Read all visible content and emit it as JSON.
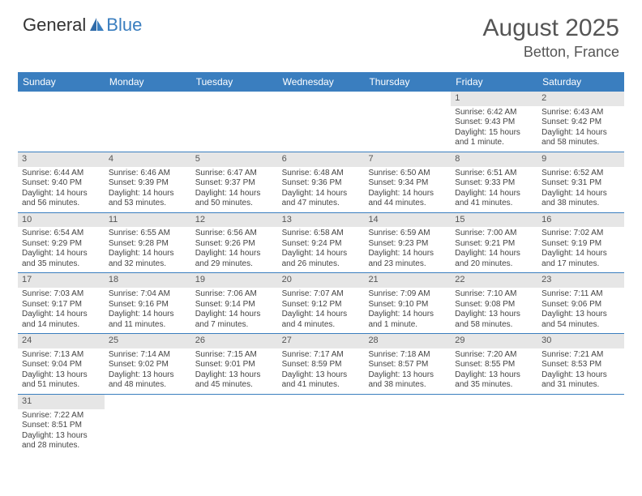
{
  "logo": {
    "part1": "General",
    "part2": "Blue"
  },
  "title": {
    "month": "August 2025",
    "location": "Betton, France"
  },
  "dow": [
    "Sunday",
    "Monday",
    "Tuesday",
    "Wednesday",
    "Thursday",
    "Friday",
    "Saturday"
  ],
  "colors": {
    "header_bg": "#3a7ebf",
    "daynum_bg": "#e6e6e6",
    "text": "#444444"
  },
  "weeks": [
    [
      {
        "n": "",
        "empty": true
      },
      {
        "n": "",
        "empty": true
      },
      {
        "n": "",
        "empty": true
      },
      {
        "n": "",
        "empty": true
      },
      {
        "n": "",
        "empty": true
      },
      {
        "n": "1",
        "sr": "Sunrise: 6:42 AM",
        "ss": "Sunset: 9:43 PM",
        "dl1": "Daylight: 15 hours",
        "dl2": "and 1 minute."
      },
      {
        "n": "2",
        "sr": "Sunrise: 6:43 AM",
        "ss": "Sunset: 9:42 PM",
        "dl1": "Daylight: 14 hours",
        "dl2": "and 58 minutes."
      }
    ],
    [
      {
        "n": "3",
        "sr": "Sunrise: 6:44 AM",
        "ss": "Sunset: 9:40 PM",
        "dl1": "Daylight: 14 hours",
        "dl2": "and 56 minutes."
      },
      {
        "n": "4",
        "sr": "Sunrise: 6:46 AM",
        "ss": "Sunset: 9:39 PM",
        "dl1": "Daylight: 14 hours",
        "dl2": "and 53 minutes."
      },
      {
        "n": "5",
        "sr": "Sunrise: 6:47 AM",
        "ss": "Sunset: 9:37 PM",
        "dl1": "Daylight: 14 hours",
        "dl2": "and 50 minutes."
      },
      {
        "n": "6",
        "sr": "Sunrise: 6:48 AM",
        "ss": "Sunset: 9:36 PM",
        "dl1": "Daylight: 14 hours",
        "dl2": "and 47 minutes."
      },
      {
        "n": "7",
        "sr": "Sunrise: 6:50 AM",
        "ss": "Sunset: 9:34 PM",
        "dl1": "Daylight: 14 hours",
        "dl2": "and 44 minutes."
      },
      {
        "n": "8",
        "sr": "Sunrise: 6:51 AM",
        "ss": "Sunset: 9:33 PM",
        "dl1": "Daylight: 14 hours",
        "dl2": "and 41 minutes."
      },
      {
        "n": "9",
        "sr": "Sunrise: 6:52 AM",
        "ss": "Sunset: 9:31 PM",
        "dl1": "Daylight: 14 hours",
        "dl2": "and 38 minutes."
      }
    ],
    [
      {
        "n": "10",
        "sr": "Sunrise: 6:54 AM",
        "ss": "Sunset: 9:29 PM",
        "dl1": "Daylight: 14 hours",
        "dl2": "and 35 minutes."
      },
      {
        "n": "11",
        "sr": "Sunrise: 6:55 AM",
        "ss": "Sunset: 9:28 PM",
        "dl1": "Daylight: 14 hours",
        "dl2": "and 32 minutes."
      },
      {
        "n": "12",
        "sr": "Sunrise: 6:56 AM",
        "ss": "Sunset: 9:26 PM",
        "dl1": "Daylight: 14 hours",
        "dl2": "and 29 minutes."
      },
      {
        "n": "13",
        "sr": "Sunrise: 6:58 AM",
        "ss": "Sunset: 9:24 PM",
        "dl1": "Daylight: 14 hours",
        "dl2": "and 26 minutes."
      },
      {
        "n": "14",
        "sr": "Sunrise: 6:59 AM",
        "ss": "Sunset: 9:23 PM",
        "dl1": "Daylight: 14 hours",
        "dl2": "and 23 minutes."
      },
      {
        "n": "15",
        "sr": "Sunrise: 7:00 AM",
        "ss": "Sunset: 9:21 PM",
        "dl1": "Daylight: 14 hours",
        "dl2": "and 20 minutes."
      },
      {
        "n": "16",
        "sr": "Sunrise: 7:02 AM",
        "ss": "Sunset: 9:19 PM",
        "dl1": "Daylight: 14 hours",
        "dl2": "and 17 minutes."
      }
    ],
    [
      {
        "n": "17",
        "sr": "Sunrise: 7:03 AM",
        "ss": "Sunset: 9:17 PM",
        "dl1": "Daylight: 14 hours",
        "dl2": "and 14 minutes."
      },
      {
        "n": "18",
        "sr": "Sunrise: 7:04 AM",
        "ss": "Sunset: 9:16 PM",
        "dl1": "Daylight: 14 hours",
        "dl2": "and 11 minutes."
      },
      {
        "n": "19",
        "sr": "Sunrise: 7:06 AM",
        "ss": "Sunset: 9:14 PM",
        "dl1": "Daylight: 14 hours",
        "dl2": "and 7 minutes."
      },
      {
        "n": "20",
        "sr": "Sunrise: 7:07 AM",
        "ss": "Sunset: 9:12 PM",
        "dl1": "Daylight: 14 hours",
        "dl2": "and 4 minutes."
      },
      {
        "n": "21",
        "sr": "Sunrise: 7:09 AM",
        "ss": "Sunset: 9:10 PM",
        "dl1": "Daylight: 14 hours",
        "dl2": "and 1 minute."
      },
      {
        "n": "22",
        "sr": "Sunrise: 7:10 AM",
        "ss": "Sunset: 9:08 PM",
        "dl1": "Daylight: 13 hours",
        "dl2": "and 58 minutes."
      },
      {
        "n": "23",
        "sr": "Sunrise: 7:11 AM",
        "ss": "Sunset: 9:06 PM",
        "dl1": "Daylight: 13 hours",
        "dl2": "and 54 minutes."
      }
    ],
    [
      {
        "n": "24",
        "sr": "Sunrise: 7:13 AM",
        "ss": "Sunset: 9:04 PM",
        "dl1": "Daylight: 13 hours",
        "dl2": "and 51 minutes."
      },
      {
        "n": "25",
        "sr": "Sunrise: 7:14 AM",
        "ss": "Sunset: 9:02 PM",
        "dl1": "Daylight: 13 hours",
        "dl2": "and 48 minutes."
      },
      {
        "n": "26",
        "sr": "Sunrise: 7:15 AM",
        "ss": "Sunset: 9:01 PM",
        "dl1": "Daylight: 13 hours",
        "dl2": "and 45 minutes."
      },
      {
        "n": "27",
        "sr": "Sunrise: 7:17 AM",
        "ss": "Sunset: 8:59 PM",
        "dl1": "Daylight: 13 hours",
        "dl2": "and 41 minutes."
      },
      {
        "n": "28",
        "sr": "Sunrise: 7:18 AM",
        "ss": "Sunset: 8:57 PM",
        "dl1": "Daylight: 13 hours",
        "dl2": "and 38 minutes."
      },
      {
        "n": "29",
        "sr": "Sunrise: 7:20 AM",
        "ss": "Sunset: 8:55 PM",
        "dl1": "Daylight: 13 hours",
        "dl2": "and 35 minutes."
      },
      {
        "n": "30",
        "sr": "Sunrise: 7:21 AM",
        "ss": "Sunset: 8:53 PM",
        "dl1": "Daylight: 13 hours",
        "dl2": "and 31 minutes."
      }
    ],
    [
      {
        "n": "31",
        "sr": "Sunrise: 7:22 AM",
        "ss": "Sunset: 8:51 PM",
        "dl1": "Daylight: 13 hours",
        "dl2": "and 28 minutes."
      },
      {
        "n": "",
        "empty": true,
        "blank": true
      },
      {
        "n": "",
        "empty": true,
        "blank": true
      },
      {
        "n": "",
        "empty": true,
        "blank": true
      },
      {
        "n": "",
        "empty": true,
        "blank": true
      },
      {
        "n": "",
        "empty": true,
        "blank": true
      },
      {
        "n": "",
        "empty": true,
        "blank": true
      }
    ]
  ]
}
